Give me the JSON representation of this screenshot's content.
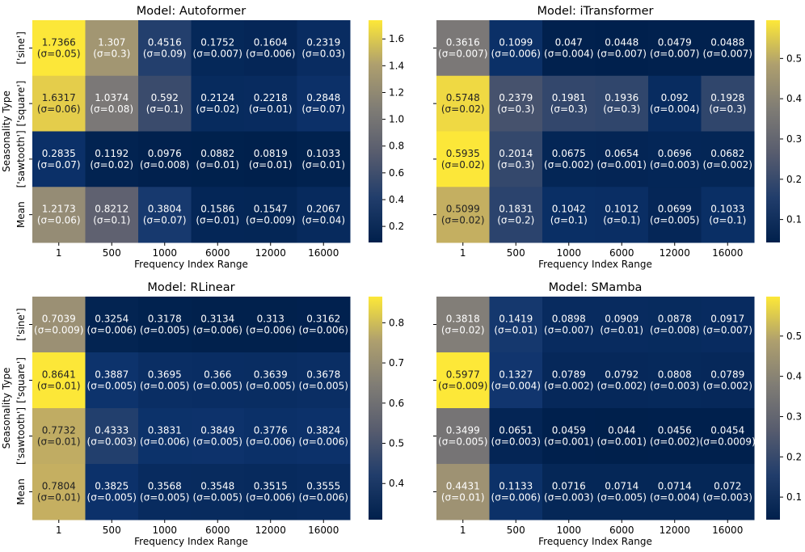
{
  "chart_data": [
    {
      "type": "heatmap",
      "title": "Model: Autoformer",
      "xlabel": "Frequency Index Range",
      "ylabel": "Seasonality Type",
      "x_categories": [
        "1",
        "500",
        "1000",
        "6000",
        "12000",
        "16000"
      ],
      "y_categories": [
        "['sine']",
        "['square']",
        "['sawtooth']",
        "Mean"
      ],
      "values": [
        [
          "1.7366",
          "1.307",
          "0.4516",
          "0.1752",
          "0.1604",
          "0.2319"
        ],
        [
          "1.6317",
          "1.0374",
          "0.592",
          "0.2124",
          "0.2218",
          "0.2848"
        ],
        [
          "0.2835",
          "0.1192",
          "0.0976",
          "0.0882",
          "0.0819",
          "0.1033"
        ],
        [
          "1.2173",
          "0.8212",
          "0.3804",
          "0.1586",
          "0.1547",
          "0.2067"
        ]
      ],
      "sigmas": [
        [
          "(σ=0.05)",
          "(σ=0.3)",
          "(σ=0.09)",
          "(σ=0.007)",
          "(σ=0.006)",
          "(σ=0.03)"
        ],
        [
          "(σ=0.06)",
          "(σ=0.08)",
          "(σ=0.1)",
          "(σ=0.02)",
          "(σ=0.01)",
          "(σ=0.07)"
        ],
        [
          "(σ=0.07)",
          "(σ=0.02)",
          "(σ=0.008)",
          "(σ=0.01)",
          "(σ=0.01)",
          "(σ=0.01)"
        ],
        [
          "(σ=0.06)",
          "(σ=0.1)",
          "(σ=0.07)",
          "(σ=0.01)",
          "(σ=0.009)",
          "(σ=0.04)"
        ]
      ],
      "vmin": 0.08,
      "vmax": 1.74,
      "colorbar_ticks": [
        "0.2",
        "0.4",
        "0.6",
        "0.8",
        "1.0",
        "1.2",
        "1.4",
        "1.6"
      ],
      "colormap": "cividis"
    },
    {
      "type": "heatmap",
      "title": "Model: iTransformer",
      "xlabel": "Frequency Index Range",
      "ylabel": "",
      "x_categories": [
        "1",
        "500",
        "1000",
        "6000",
        "12000",
        "16000"
      ],
      "y_categories": [],
      "values": [
        [
          "0.3616",
          "0.1099",
          "0.047",
          "0.0448",
          "0.0479",
          "0.0488"
        ],
        [
          "0.5748",
          "0.2379",
          "0.1981",
          "0.1936",
          "0.092",
          "0.1928"
        ],
        [
          "0.5935",
          "0.2014",
          "0.0675",
          "0.0654",
          "0.0696",
          "0.0682"
        ],
        [
          "0.5099",
          "0.1831",
          "0.1042",
          "0.1012",
          "0.0699",
          "0.1033"
        ]
      ],
      "sigmas": [
        [
          "(σ=0.007)",
          "(σ=0.006)",
          "(σ=0.004)",
          "(σ=0.007)",
          "(σ=0.007)",
          "(σ=0.007)"
        ],
        [
          "(σ=0.02)",
          "(σ=0.3)",
          "(σ=0.3)",
          "(σ=0.3)",
          "(σ=0.004)",
          "(σ=0.3)"
        ],
        [
          "(σ=0.02)",
          "(σ=0.3)",
          "(σ=0.002)",
          "(σ=0.001)",
          "(σ=0.003)",
          "(σ=0.002)"
        ],
        [
          "(σ=0.02)",
          "(σ=0.2)",
          "(σ=0.1)",
          "(σ=0.1)",
          "(σ=0.005)",
          "(σ=0.1)"
        ]
      ],
      "vmin": 0.043,
      "vmax": 0.595,
      "colorbar_ticks": [
        "0.1",
        "0.2",
        "0.3",
        "0.4",
        "0.5"
      ],
      "colormap": "cividis"
    },
    {
      "type": "heatmap",
      "title": "Model: RLinear",
      "xlabel": "Frequency Index Range",
      "ylabel": "Seasonality Type",
      "x_categories": [
        "1",
        "500",
        "1000",
        "6000",
        "12000",
        "16000"
      ],
      "y_categories": [
        "['sine']",
        "['square']",
        "['sawtooth']",
        "Mean"
      ],
      "values": [
        [
          "0.7039",
          "0.3254",
          "0.3178",
          "0.3134",
          "0.313",
          "0.3162"
        ],
        [
          "0.8641",
          "0.3887",
          "0.3695",
          "0.366",
          "0.3639",
          "0.3678"
        ],
        [
          "0.7732",
          "0.4333",
          "0.3831",
          "0.3849",
          "0.3776",
          "0.3824"
        ],
        [
          "0.7804",
          "0.3825",
          "0.3568",
          "0.3548",
          "0.3515",
          "0.3555"
        ]
      ],
      "sigmas": [
        [
          "(σ=0.009)",
          "(σ=0.006)",
          "(σ=0.005)",
          "(σ=0.006)",
          "(σ=0.006)",
          "(σ=0.006)"
        ],
        [
          "(σ=0.01)",
          "(σ=0.005)",
          "(σ=0.005)",
          "(σ=0.005)",
          "(σ=0.005)",
          "(σ=0.005)"
        ],
        [
          "(σ=0.01)",
          "(σ=0.003)",
          "(σ=0.006)",
          "(σ=0.005)",
          "(σ=0.006)",
          "(σ=0.006)"
        ],
        [
          "(σ=0.01)",
          "(σ=0.005)",
          "(σ=0.005)",
          "(σ=0.005)",
          "(σ=0.006)",
          "(σ=0.006)"
        ]
      ],
      "vmin": 0.31,
      "vmax": 0.865,
      "colorbar_ticks": [
        "0.4",
        "0.5",
        "0.6",
        "0.7",
        "0.8"
      ],
      "colormap": "cividis"
    },
    {
      "type": "heatmap",
      "title": "Model: SMamba",
      "xlabel": "Frequency Index Range",
      "ylabel": "",
      "x_categories": [
        "1",
        "500",
        "1000",
        "6000",
        "12000",
        "16000"
      ],
      "y_categories": [],
      "values": [
        [
          "0.3818",
          "0.1419",
          "0.0898",
          "0.0909",
          "0.0878",
          "0.0917"
        ],
        [
          "0.5977",
          "0.1327",
          "0.0789",
          "0.0792",
          "0.0808",
          "0.0789"
        ],
        [
          "0.3499",
          "0.0651",
          "0.0459",
          "0.044",
          "0.0456",
          "0.0454"
        ],
        [
          "0.4431",
          "0.1133",
          "0.0716",
          "0.0714",
          "0.0714",
          "0.072"
        ]
      ],
      "sigmas": [
        [
          "(σ=0.02)",
          "(σ=0.01)",
          "(σ=0.007)",
          "(σ=0.01)",
          "(σ=0.008)",
          "(σ=0.007)"
        ],
        [
          "(σ=0.009)",
          "(σ=0.004)",
          "(σ=0.002)",
          "(σ=0.002)",
          "(σ=0.003)",
          "(σ=0.002)"
        ],
        [
          "(σ=0.005)",
          "(σ=0.003)",
          "(σ=0.001)",
          "(σ=0.001)",
          "(σ=0.002)",
          "(σ=0.0009)"
        ],
        [
          "(σ=0.01)",
          "(σ=0.006)",
          "(σ=0.003)",
          "(σ=0.005)",
          "(σ=0.004)",
          "(σ=0.003)"
        ]
      ],
      "vmin": 0.044,
      "vmax": 0.598,
      "colorbar_ticks": [
        "0.1",
        "0.2",
        "0.3",
        "0.4",
        "0.5"
      ],
      "colormap": "cividis"
    }
  ]
}
